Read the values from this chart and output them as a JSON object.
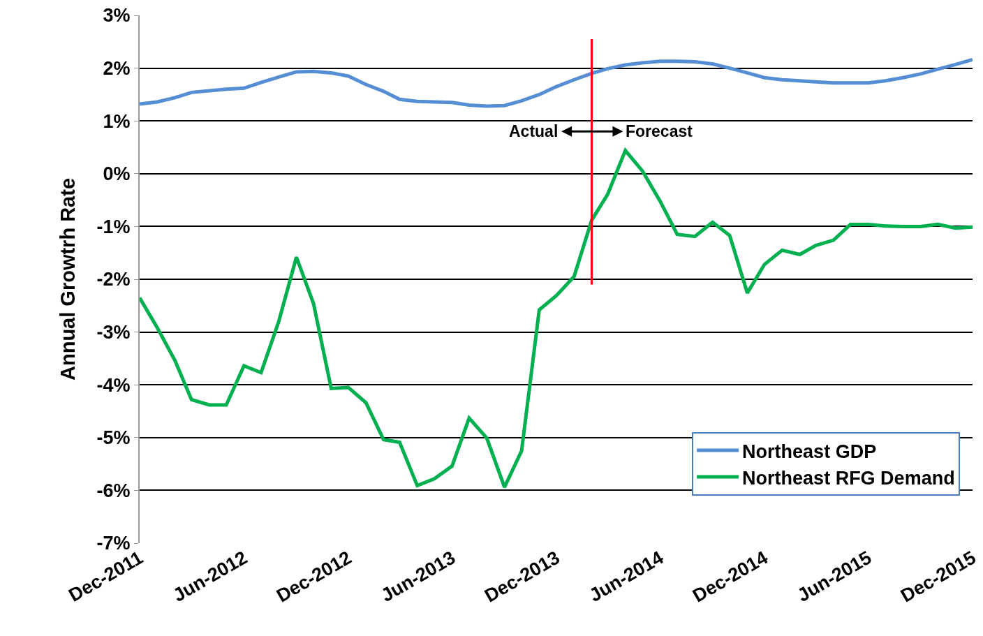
{
  "chart_data": {
    "type": "line",
    "ylabel": "Annual Growtrh Rate",
    "x": [
      "2011-12",
      "2012-01",
      "2012-02",
      "2012-03",
      "2012-04",
      "2012-05",
      "2012-06",
      "2012-07",
      "2012-08",
      "2012-09",
      "2012-10",
      "2012-11",
      "2012-12",
      "2013-01",
      "2013-02",
      "2013-03",
      "2013-04",
      "2013-05",
      "2013-06",
      "2013-07",
      "2013-08",
      "2013-09",
      "2013-10",
      "2013-11",
      "2013-12",
      "2014-01",
      "2014-02",
      "2014-03",
      "2014-04",
      "2014-05",
      "2014-06",
      "2014-07",
      "2014-08",
      "2014-09",
      "2014-10",
      "2014-11",
      "2014-12",
      "2015-01",
      "2015-02",
      "2015-03",
      "2015-04",
      "2015-05",
      "2015-06",
      "2015-07",
      "2015-08",
      "2015-09",
      "2015-10",
      "2015-11",
      "2015-12"
    ],
    "series": [
      {
        "name": "Northeast GDP",
        "color": "#558ed5",
        "values": [
          1.32,
          1.36,
          1.44,
          1.54,
          1.57,
          1.6,
          1.62,
          1.73,
          1.83,
          1.93,
          1.94,
          1.91,
          1.85,
          1.69,
          1.56,
          1.41,
          1.37,
          1.36,
          1.35,
          1.3,
          1.28,
          1.29,
          1.38,
          1.5,
          1.65,
          1.78,
          1.9,
          1.99,
          2.06,
          2.1,
          2.13,
          2.13,
          2.12,
          2.08,
          2.0,
          1.91,
          1.82,
          1.78,
          1.76,
          1.74,
          1.72,
          1.72,
          1.72,
          1.76,
          1.82,
          1.89,
          1.98,
          2.07,
          2.16
        ]
      },
      {
        "name": "Northeast RFG Demand",
        "color": "#00b050",
        "values": [
          -2.35,
          -2.92,
          -3.54,
          -4.28,
          -4.38,
          -4.38,
          -3.64,
          -3.77,
          -2.8,
          -1.58,
          -2.46,
          -4.07,
          -4.05,
          -4.34,
          -5.04,
          -5.09,
          -5.91,
          -5.78,
          -5.54,
          -4.63,
          -5.01,
          -5.94,
          -5.25,
          -2.58,
          -2.31,
          -1.95,
          -0.88,
          -0.39,
          0.44,
          0.05,
          -0.52,
          -1.15,
          -1.19,
          -0.92,
          -1.17,
          -2.26,
          -1.72,
          -1.45,
          -1.53,
          -1.36,
          -1.26,
          -0.96,
          -0.96,
          -0.99,
          -1.0,
          -1.0,
          -0.96,
          -1.03,
          -1.01
        ]
      }
    ],
    "xlim": [
      "2011-12",
      "2015-12"
    ],
    "xticks": [
      {
        "value": "2011-12",
        "label": "Dec-2011"
      },
      {
        "value": "2012-06",
        "label": "Jun-2012"
      },
      {
        "value": "2012-12",
        "label": "Dec-2012"
      },
      {
        "value": "2013-06",
        "label": "Jun-2013"
      },
      {
        "value": "2013-12",
        "label": "Dec-2013"
      },
      {
        "value": "2014-06",
        "label": "Jun-2014"
      },
      {
        "value": "2014-12",
        "label": "Dec-2014"
      },
      {
        "value": "2015-06",
        "label": "Jun-2015"
      },
      {
        "value": "2015-12",
        "label": "Dec-2015"
      }
    ],
    "ylim": [
      -7,
      3
    ],
    "yticks": [
      {
        "value": 3,
        "label": "3%"
      },
      {
        "value": 2,
        "label": "2%"
      },
      {
        "value": 1,
        "label": "1%"
      },
      {
        "value": 0,
        "label": "0%"
      },
      {
        "value": -1,
        "label": "-1%"
      },
      {
        "value": -2,
        "label": "-2%"
      },
      {
        "value": -3,
        "label": "-3%"
      },
      {
        "value": -4,
        "label": "-4%"
      },
      {
        "value": -5,
        "label": "-5%"
      },
      {
        "value": -6,
        "label": "-6%"
      },
      {
        "value": -7,
        "label": "-7%"
      }
    ],
    "ref_lines": [
      {
        "axis": "x",
        "value": "2014-02",
        "color": "#ff0000"
      }
    ],
    "annotations": [
      {
        "text": "Actual",
        "x": "2014-02",
        "y": 0.8
      },
      {
        "text": "Forecast",
        "x": "2014-02",
        "y": 0.8
      }
    ],
    "grid": "y",
    "legend": "bottom right",
    "marker": "none",
    "line_style": "solid"
  }
}
